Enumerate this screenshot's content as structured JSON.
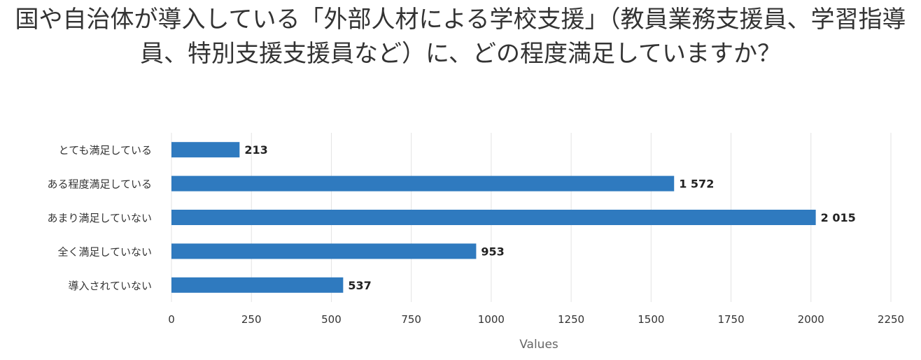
{
  "chart_data": {
    "type": "bar",
    "orientation": "horizontal",
    "title": "国や自治体が導入している「外部人材による学校支援」（教員業務支援員、学習指導員、特別支援支援員など）に、どの程度満足していますか？",
    "categories": [
      "とても満足している",
      "ある程度満足している",
      "あまり満足していない",
      "全く満足していない",
      "導入されていない"
    ],
    "values": [
      213,
      1572,
      2015,
      953,
      537
    ],
    "value_labels": [
      "213",
      "1 572",
      "2 015",
      "953",
      "537"
    ],
    "xlabel": "Values",
    "ylabel": "",
    "xlim": [
      0,
      2250
    ],
    "ticks": [
      0,
      250,
      500,
      750,
      1000,
      1250,
      1500,
      1750,
      2000,
      2250
    ],
    "tick_labels": [
      "0",
      "250",
      "500",
      "750",
      "1000",
      "1250",
      "1500",
      "1750",
      "2000",
      "2250"
    ],
    "grid": true,
    "bar_color": "#2f7abf"
  }
}
